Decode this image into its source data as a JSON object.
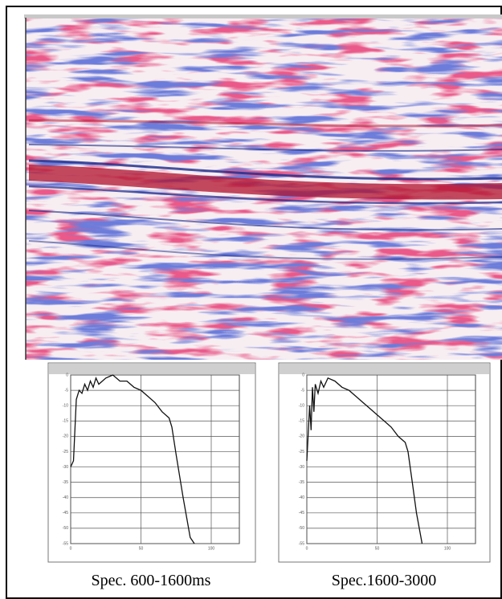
{
  "chart_data": [
    {
      "type": "line",
      "title": "Spec. 600-1600ms",
      "color": "#111111",
      "grid": true,
      "x": [
        0,
        2,
        4,
        6,
        8,
        10,
        12,
        14,
        16,
        18,
        20,
        25,
        30,
        35,
        40,
        45,
        50,
        55,
        60,
        65,
        70,
        72,
        75,
        80,
        85,
        88
      ],
      "values": [
        -30,
        -28,
        -8,
        -5,
        -6,
        -3,
        -5,
        -2,
        -4,
        -1,
        -3,
        -1,
        0,
        -2,
        -2,
        -4,
        -5,
        -7,
        -9,
        -12,
        -14,
        -17,
        -26,
        -40,
        -53,
        -55
      ],
      "xlim": [
        0,
        120
      ],
      "ylim": [
        -55,
        0
      ],
      "xticks": [
        0,
        50,
        100
      ],
      "yticks": [
        0,
        -5,
        -10,
        -15,
        -20,
        -25,
        -30,
        -35,
        -40,
        -45,
        -50,
        -55
      ]
    },
    {
      "type": "line",
      "title": "Spec.1600-3000",
      "color": "#111111",
      "grid": true,
      "x": [
        0,
        2,
        3,
        4,
        5,
        6,
        8,
        10,
        12,
        15,
        20,
        25,
        30,
        35,
        40,
        45,
        50,
        55,
        60,
        65,
        70,
        72,
        75,
        78,
        82
      ],
      "values": [
        -28,
        -10,
        -18,
        -4,
        -12,
        -3,
        -6,
        -2,
        -4,
        -1,
        -2,
        -4,
        -5,
        -7,
        -9,
        -11,
        -13,
        -15,
        -17,
        -20,
        -22,
        -25,
        -35,
        -45,
        -55
      ],
      "xlim": [
        0,
        120
      ],
      "ylim": [
        -55,
        0
      ],
      "xticks": [
        0,
        50,
        100
      ],
      "yticks": [
        0,
        -5,
        -10,
        -15,
        -20,
        -25,
        -30,
        -35,
        -40,
        -45,
        -50,
        -55
      ]
    }
  ]
}
